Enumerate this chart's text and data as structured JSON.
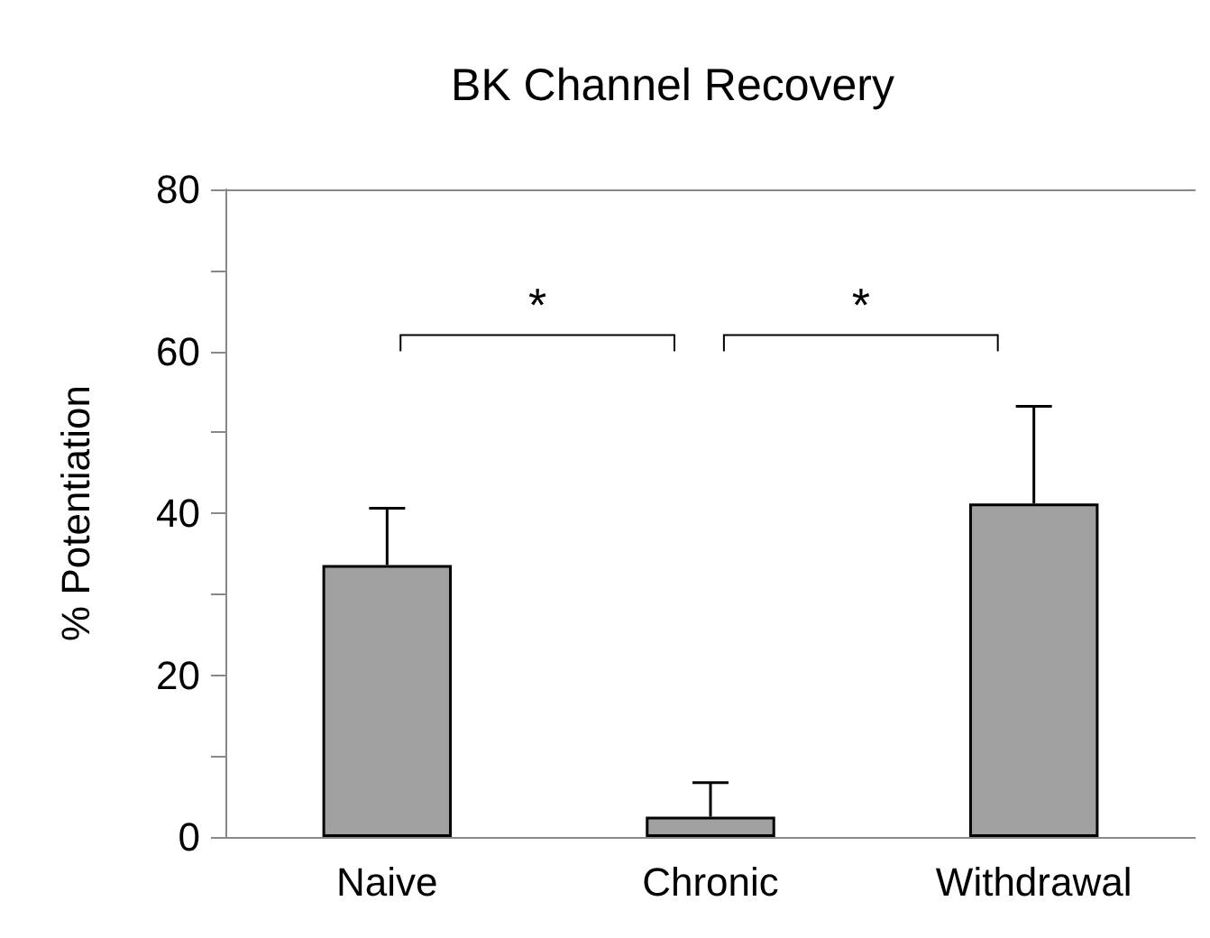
{
  "chart_data": {
    "type": "bar",
    "title": "BK Channel Recovery",
    "ylabel": "% Potentiation",
    "categories": [
      "Naive",
      "Chronic",
      "Withdrawal"
    ],
    "values": [
      33.6,
      2.5,
      41.2
    ],
    "color": "#a0a0a0",
    "errors": [
      [
        33.6,
        40.6
      ],
      [
        2.5,
        6.7
      ],
      [
        41.2,
        53.2
      ]
    ],
    "ylim": [
      0,
      80
    ],
    "yticks": [
      0,
      {
        "value": 10,
        "label": null
      },
      20,
      {
        "value": 30,
        "label": null
      },
      40,
      {
        "value": 50,
        "label": null
      },
      60,
      {
        "value": 70,
        "label": null
      },
      80
    ],
    "grid": false,
    "annotations": [
      "*",
      "*"
    ]
  }
}
